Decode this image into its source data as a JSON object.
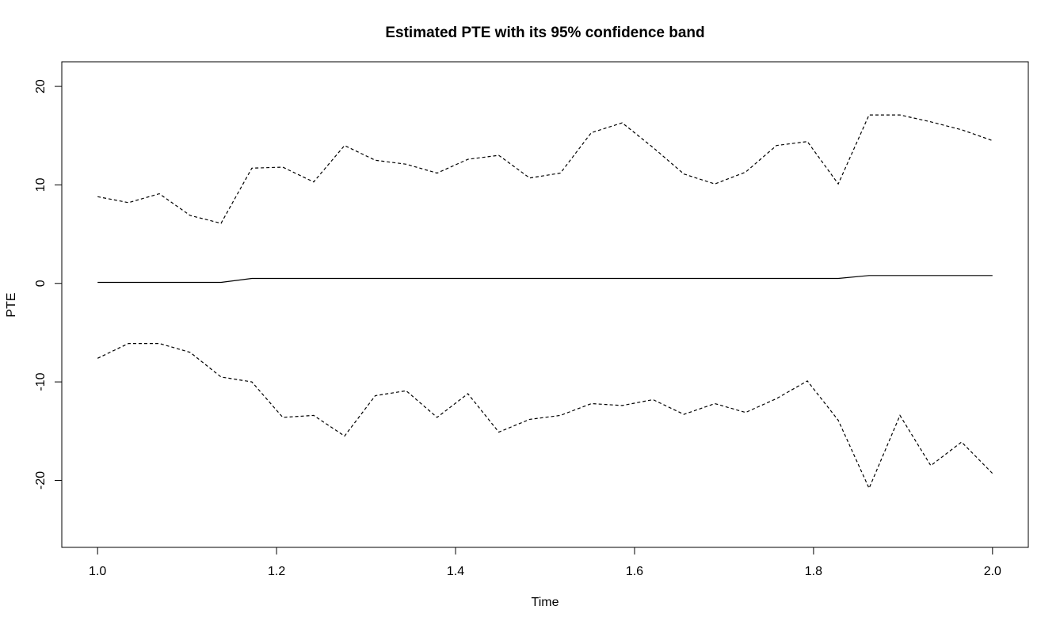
{
  "chart_data": {
    "type": "line",
    "title": "Estimated PTE with its 95% confidence band",
    "xlabel": "Time",
    "ylabel": "PTE",
    "xlim": [
      0.96,
      2.04
    ],
    "ylim": [
      -26.8,
      22.5
    ],
    "x_ticks": [
      "1.0",
      "1.2",
      "1.4",
      "1.6",
      "1.8",
      "2.0"
    ],
    "y_ticks": [
      "-20",
      "-10",
      "0",
      "10",
      "20"
    ],
    "x": [
      1.0,
      1.0345,
      1.069,
      1.1034,
      1.1379,
      1.1724,
      1.2069,
      1.2414,
      1.2759,
      1.3103,
      1.3448,
      1.3793,
      1.4138,
      1.4483,
      1.4828,
      1.5172,
      1.5517,
      1.5862,
      1.6207,
      1.6552,
      1.6897,
      1.7241,
      1.7586,
      1.7931,
      1.8276,
      1.8621,
      1.8966,
      1.931,
      1.9655,
      2.0
    ],
    "series": [
      {
        "style": "solid",
        "values": [
          0.1,
          0.1,
          0.1,
          0.1,
          0.1,
          0.5,
          0.5,
          0.5,
          0.5,
          0.5,
          0.5,
          0.5,
          0.5,
          0.5,
          0.5,
          0.5,
          0.5,
          0.5,
          0.5,
          0.5,
          0.5,
          0.5,
          0.5,
          0.5,
          0.5,
          0.8,
          0.8,
          0.8,
          0.8,
          0.8
        ]
      },
      {
        "style": "dashed",
        "values": [
          8.8,
          8.2,
          9.1,
          6.9,
          6.1,
          11.7,
          11.8,
          10.3,
          14.0,
          12.5,
          12.1,
          11.2,
          12.6,
          13.0,
          10.7,
          11.2,
          15.3,
          16.3,
          13.8,
          11.1,
          10.1,
          11.3,
          14.0,
          14.4,
          10.1,
          17.1,
          17.1,
          16.4,
          15.6,
          14.5
        ]
      },
      {
        "style": "dashed",
        "values": [
          -7.6,
          -6.1,
          -6.1,
          -7.0,
          -9.5,
          -10.0,
          -13.6,
          -13.4,
          -15.5,
          -11.4,
          -10.9,
          -13.6,
          -11.2,
          -15.1,
          -13.8,
          -13.4,
          -12.2,
          -12.4,
          -11.8,
          -13.3,
          -12.2,
          -13.1,
          -11.7,
          -9.9,
          -13.9,
          -20.8,
          -13.4,
          -18.5,
          -16.1,
          -19.3
        ]
      }
    ]
  }
}
